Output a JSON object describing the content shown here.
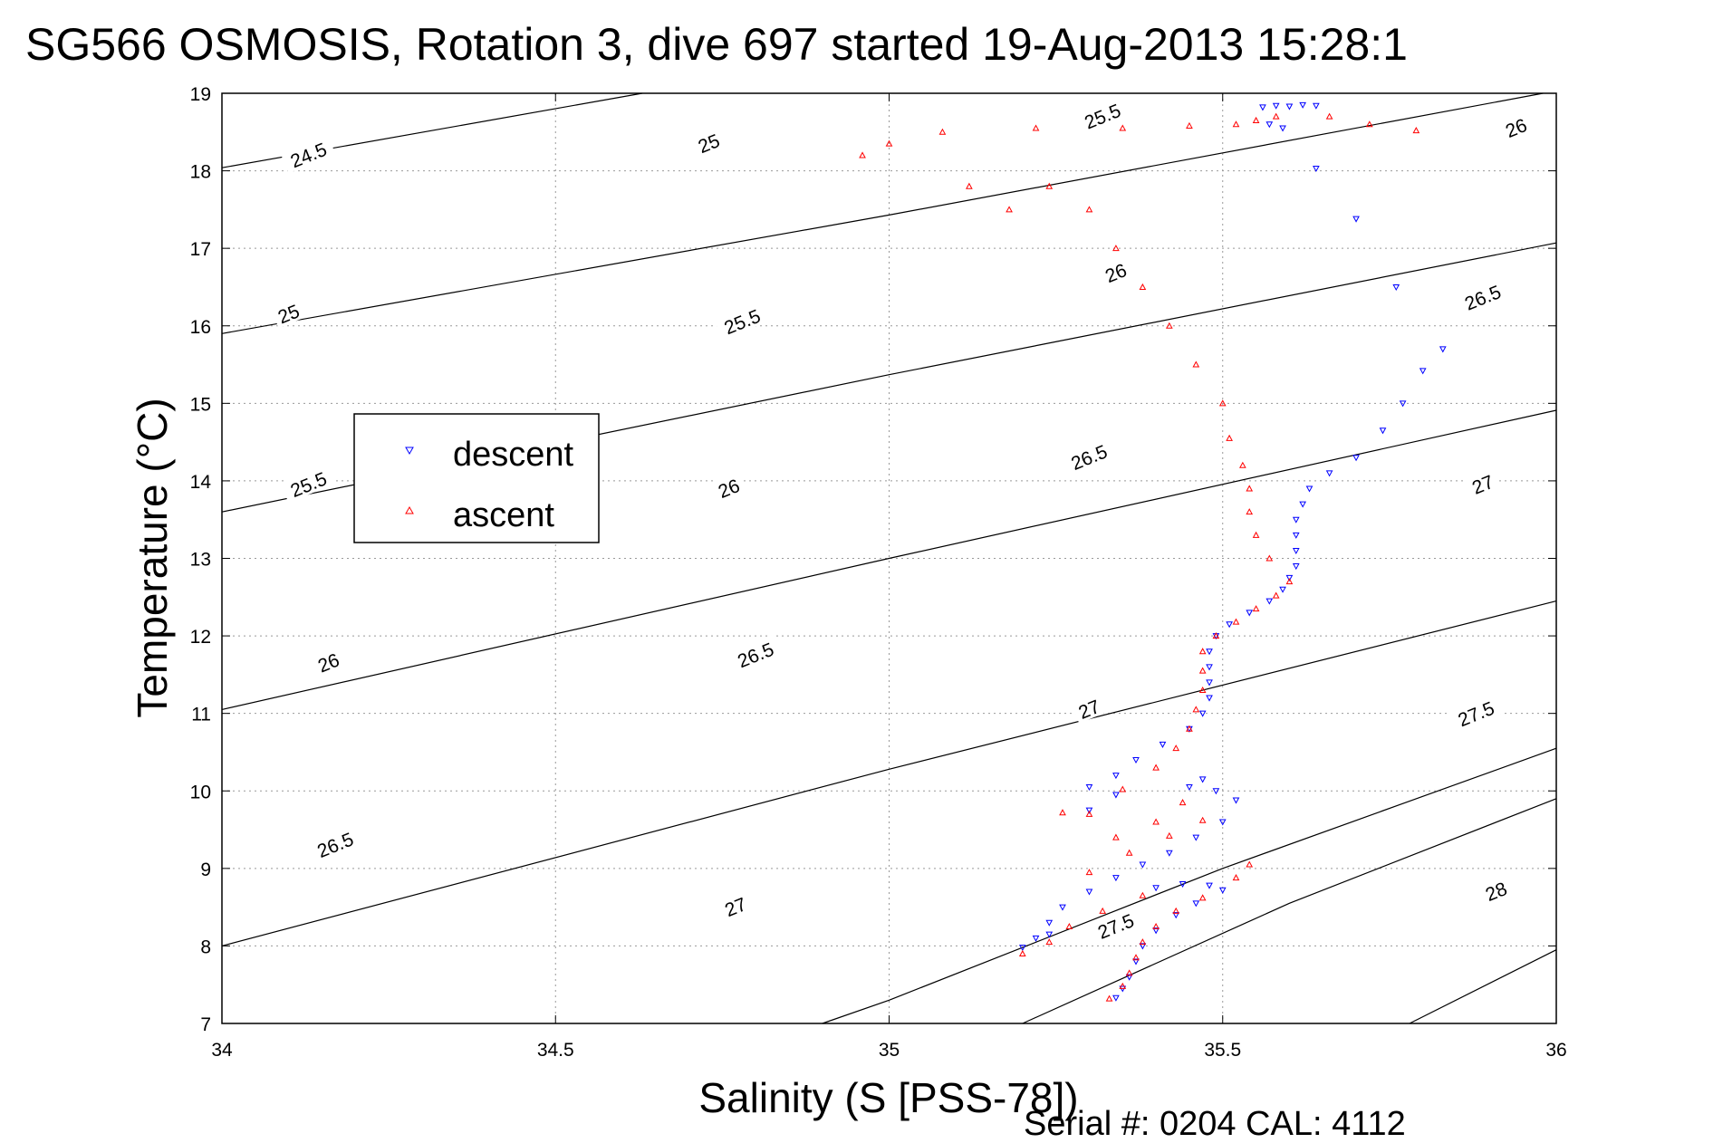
{
  "chart_data": {
    "type": "scatter",
    "title": "SG566 OSMOSIS, Rotation 3, dive 697 started 19-Aug-2013 15:28:1",
    "xlabel": "Salinity (S [PSS-78])",
    "ylabel": "Temperature (°C)",
    "footnote": "Serial #: 0204  CAL: 4112",
    "xlim": [
      34,
      36
    ],
    "ylim": [
      7,
      19
    ],
    "x_ticks": [
      "34",
      "34.5",
      "35",
      "35.5",
      "36"
    ],
    "y_ticks": [
      "7",
      "8",
      "9",
      "10",
      "11",
      "12",
      "13",
      "14",
      "15",
      "16",
      "17",
      "18",
      "19"
    ],
    "grid": true,
    "legend_position": "upper-left",
    "legend": [
      "descent",
      "ascent"
    ],
    "colors": {
      "descent": "#0000ff",
      "ascent": "#ff0000",
      "contour": "#000000"
    },
    "contours": [
      {
        "label": "24.5",
        "points": [
          [
            34.0,
            18.04
          ],
          [
            34.63,
            19.0
          ]
        ]
      },
      {
        "label": "25",
        "points": [
          [
            34.0,
            15.9
          ],
          [
            35.0,
            17.43
          ],
          [
            35.98,
            19.0
          ]
        ]
      },
      {
        "label": "25.5",
        "points": [
          [
            34.0,
            13.6
          ],
          [
            35.0,
            15.37
          ],
          [
            36.0,
            17.07
          ]
        ]
      },
      {
        "label": "26",
        "points": [
          [
            34.0,
            11.05
          ],
          [
            35.0,
            13.0
          ],
          [
            36.0,
            14.91
          ]
        ]
      },
      {
        "label": "26.5",
        "points": [
          [
            34.0,
            8.0
          ],
          [
            35.0,
            10.28
          ],
          [
            36.0,
            12.45
          ]
        ]
      },
      {
        "label": "27",
        "points": [
          [
            34.9,
            7.0
          ],
          [
            35.0,
            7.3
          ],
          [
            35.5,
            9.0
          ],
          [
            36.0,
            10.55
          ]
        ]
      },
      {
        "label": "27.5",
        "points": [
          [
            35.2,
            7.0
          ],
          [
            35.6,
            8.55
          ],
          [
            36.0,
            9.9
          ]
        ]
      },
      {
        "label": "28",
        "points": [
          [
            35.78,
            7.0
          ],
          [
            36.0,
            7.95
          ]
        ]
      }
    ],
    "contour_labels": [
      {
        "text": "24.5",
        "x": 34.13,
        "y": 18.2
      },
      {
        "text": "25",
        "x": 34.1,
        "y": 16.15
      },
      {
        "text": "25",
        "x": 34.73,
        "y": 18.35
      },
      {
        "text": "25.5",
        "x": 34.13,
        "y": 13.95
      },
      {
        "text": "25.5",
        "x": 34.78,
        "y": 16.05
      },
      {
        "text": "25.5",
        "x": 35.32,
        "y": 18.7
      },
      {
        "text": "26",
        "x": 34.16,
        "y": 11.65
      },
      {
        "text": "26",
        "x": 34.76,
        "y": 13.9
      },
      {
        "text": "26",
        "x": 35.34,
        "y": 16.68
      },
      {
        "text": "26",
        "x": 35.94,
        "y": 18.55
      },
      {
        "text": "26.5",
        "x": 34.17,
        "y": 9.3
      },
      {
        "text": "26.5",
        "x": 34.8,
        "y": 11.75
      },
      {
        "text": "26.5",
        "x": 35.3,
        "y": 14.3
      },
      {
        "text": "26.5",
        "x": 35.89,
        "y": 16.36
      },
      {
        "text": "27",
        "x": 34.77,
        "y": 8.5
      },
      {
        "text": "27",
        "x": 35.3,
        "y": 11.05
      },
      {
        "text": "27",
        "x": 35.89,
        "y": 13.95
      },
      {
        "text": "27.5",
        "x": 35.34,
        "y": 8.25
      },
      {
        "text": "27.5",
        "x": 35.88,
        "y": 10.99
      },
      {
        "text": "28",
        "x": 35.91,
        "y": 8.7
      }
    ],
    "series": [
      {
        "name": "descent",
        "marker": "triangle-down",
        "points": [
          [
            35.56,
            18.82
          ],
          [
            35.58,
            18.84
          ],
          [
            35.6,
            18.83
          ],
          [
            35.62,
            18.85
          ],
          [
            35.64,
            18.84
          ],
          [
            35.57,
            18.6
          ],
          [
            35.59,
            18.55
          ],
          [
            35.64,
            18.03
          ],
          [
            35.7,
            17.38
          ],
          [
            35.76,
            16.5
          ],
          [
            35.83,
            15.7
          ],
          [
            35.8,
            15.42
          ],
          [
            35.77,
            15.0
          ],
          [
            35.74,
            14.65
          ],
          [
            35.7,
            14.3
          ],
          [
            35.66,
            14.1
          ],
          [
            35.63,
            13.9
          ],
          [
            35.62,
            13.7
          ],
          [
            35.61,
            13.5
          ],
          [
            35.61,
            13.3
          ],
          [
            35.61,
            13.1
          ],
          [
            35.61,
            12.9
          ],
          [
            35.6,
            12.75
          ],
          [
            35.59,
            12.6
          ],
          [
            35.57,
            12.45
          ],
          [
            35.54,
            12.3
          ],
          [
            35.51,
            12.15
          ],
          [
            35.49,
            12.0
          ],
          [
            35.48,
            11.8
          ],
          [
            35.48,
            11.6
          ],
          [
            35.48,
            11.4
          ],
          [
            35.48,
            11.2
          ],
          [
            35.47,
            11.0
          ],
          [
            35.45,
            10.8
          ],
          [
            35.41,
            10.6
          ],
          [
            35.37,
            10.4
          ],
          [
            35.34,
            10.2
          ],
          [
            35.3,
            10.05
          ],
          [
            35.34,
            9.95
          ],
          [
            35.3,
            9.75
          ],
          [
            35.45,
            10.05
          ],
          [
            35.47,
            10.15
          ],
          [
            35.49,
            10.0
          ],
          [
            35.52,
            9.88
          ],
          [
            35.5,
            9.6
          ],
          [
            35.46,
            9.4
          ],
          [
            35.42,
            9.2
          ],
          [
            35.38,
            9.05
          ],
          [
            35.34,
            8.88
          ],
          [
            35.3,
            8.7
          ],
          [
            35.26,
            8.5
          ],
          [
            35.24,
            8.3
          ],
          [
            35.22,
            8.1
          ],
          [
            35.2,
            7.98
          ],
          [
            35.24,
            8.15
          ],
          [
            35.4,
            8.75
          ],
          [
            35.44,
            8.8
          ],
          [
            35.48,
            8.78
          ],
          [
            35.5,
            8.72
          ],
          [
            35.46,
            8.55
          ],
          [
            35.43,
            8.4
          ],
          [
            35.4,
            8.2
          ],
          [
            35.38,
            8.0
          ],
          [
            35.37,
            7.8
          ],
          [
            35.36,
            7.6
          ],
          [
            35.35,
            7.45
          ],
          [
            35.34,
            7.33
          ]
        ]
      },
      {
        "name": "ascent",
        "marker": "triangle-up",
        "points": [
          [
            35.33,
            7.32
          ],
          [
            35.35,
            7.48
          ],
          [
            35.36,
            7.65
          ],
          [
            35.37,
            7.85
          ],
          [
            35.38,
            8.05
          ],
          [
            35.4,
            8.25
          ],
          [
            35.43,
            8.45
          ],
          [
            35.47,
            8.62
          ],
          [
            35.52,
            8.88
          ],
          [
            35.54,
            9.05
          ],
          [
            35.38,
            8.65
          ],
          [
            35.32,
            8.45
          ],
          [
            35.27,
            8.25
          ],
          [
            35.24,
            8.05
          ],
          [
            35.2,
            7.9
          ],
          [
            35.3,
            8.95
          ],
          [
            35.36,
            9.2
          ],
          [
            35.42,
            9.42
          ],
          [
            35.47,
            9.62
          ],
          [
            35.44,
            9.85
          ],
          [
            35.4,
            9.6
          ],
          [
            35.34,
            9.4
          ],
          [
            35.3,
            9.7
          ],
          [
            35.26,
            9.72
          ],
          [
            35.35,
            10.02
          ],
          [
            35.4,
            10.3
          ],
          [
            35.43,
            10.55
          ],
          [
            35.45,
            10.8
          ],
          [
            35.46,
            11.05
          ],
          [
            35.47,
            11.3
          ],
          [
            35.47,
            11.55
          ],
          [
            35.47,
            11.8
          ],
          [
            35.49,
            12.0
          ],
          [
            35.52,
            12.18
          ],
          [
            35.55,
            12.35
          ],
          [
            35.58,
            12.52
          ],
          [
            35.6,
            12.7
          ],
          [
            35.57,
            13.0
          ],
          [
            35.55,
            13.3
          ],
          [
            35.54,
            13.6
          ],
          [
            35.54,
            13.9
          ],
          [
            35.53,
            14.2
          ],
          [
            35.51,
            14.55
          ],
          [
            35.5,
            15.0
          ],
          [
            35.46,
            15.5
          ],
          [
            35.42,
            16.0
          ],
          [
            35.38,
            16.5
          ],
          [
            35.34,
            17.0
          ],
          [
            35.3,
            17.5
          ],
          [
            35.24,
            17.8
          ],
          [
            35.18,
            17.5
          ],
          [
            35.12,
            17.8
          ],
          [
            34.96,
            18.2
          ],
          [
            35.0,
            18.35
          ],
          [
            35.08,
            18.5
          ],
          [
            35.22,
            18.55
          ],
          [
            35.35,
            18.55
          ],
          [
            35.45,
            18.58
          ],
          [
            35.52,
            18.6
          ],
          [
            35.55,
            18.65
          ],
          [
            35.58,
            18.7
          ],
          [
            35.66,
            18.7
          ],
          [
            35.72,
            18.6
          ],
          [
            35.79,
            18.52
          ]
        ]
      }
    ]
  }
}
